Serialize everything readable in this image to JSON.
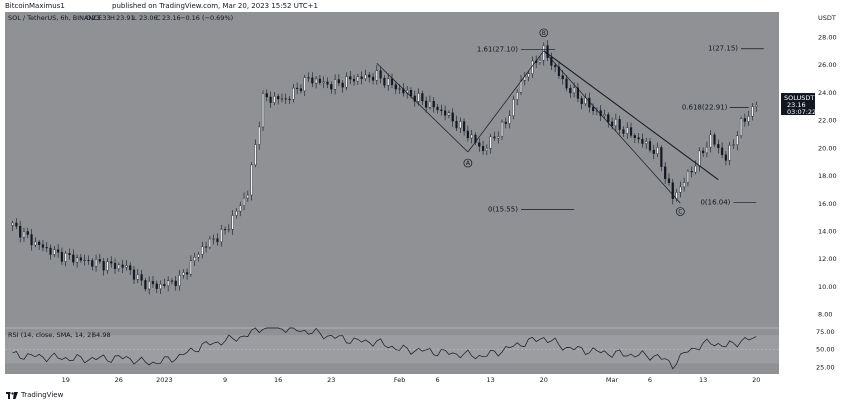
{
  "header": {
    "author": "BitcoinMaximus1",
    "published": "published on TradingView.com, Mar 20, 2023 15:52 UTC+1"
  },
  "legend": {
    "symbol": "SOL / TetherUS, 6h, BINANCE",
    "o_label": "O",
    "o": "23.33",
    "h_label": "H",
    "h": "23.91",
    "l_label": "L",
    "l": "23.06",
    "c_label": "C",
    "c": "23.16",
    "change": "−0.16 (−0.69%)"
  },
  "price_scale": {
    "currency": "USDT",
    "last_ticker": "SOLUSDT",
    "last_price": "23.16",
    "countdown": "03:07:22"
  },
  "annotations": {
    "wave_a": "A",
    "wave_b": "B",
    "wave_c": "C",
    "fib_161": "1.61(27.10)",
    "fib_0_lower": "0(15.55)",
    "fib_1": "1(27.15)",
    "fib_0618": "0.618(22.91)",
    "fib_0_right": "0(16.04)"
  },
  "rsi": {
    "label": "RSI (14, close, SMA, 14, 2)",
    "value": "64.98"
  },
  "footer": {
    "brand": "TradingView"
  },
  "colors": {
    "chart_bg": "#8f9194",
    "rsi_band": "#9b9da0",
    "candle": "#131722",
    "line": "#131722",
    "label_bg": "#131722",
    "label_fg": "#ffffff"
  },
  "chart_data": [
    {
      "type": "line",
      "name": "SOLUSDT 6h price (approximate closes, candlestick chart)",
      "x": [
        "Dec 12",
        "Dec 15",
        "Dec 18",
        "Dec 21",
        "Dec 24",
        "Dec 27",
        "Dec 29",
        "Dec 31",
        "Jan 3",
        "Jan 6",
        "Jan 9",
        "Jan 12",
        "Jan 14",
        "Jan 17",
        "Jan 20",
        "Jan 23",
        "Jan 26",
        "Jan 29",
        "Feb 1",
        "Feb 4",
        "Feb 7",
        "Feb 10",
        "Feb 12",
        "Feb 15",
        "Feb 17",
        "Feb 20",
        "Feb 23",
        "Feb 26",
        "Mar 1",
        "Mar 4",
        "Mar 7",
        "Mar 9",
        "Mar 11",
        "Mar 14",
        "Mar 16",
        "Mar 18",
        "Mar 20"
      ],
      "y": [
        14.4,
        13.1,
        12.3,
        11.9,
        11.6,
        11.4,
        10.3,
        10.0,
        10.5,
        12.8,
        14.0,
        16.8,
        23.6,
        23.5,
        25.0,
        24.5,
        25.0,
        25.2,
        24.2,
        23.4,
        22.5,
        21.0,
        19.8,
        21.8,
        24.8,
        27.0,
        24.4,
        23.0,
        21.8,
        20.8,
        19.6,
        16.4,
        18.0,
        20.7,
        19.2,
        21.7,
        23.16
      ],
      "ylim": [
        7.0,
        29.8
      ],
      "yticks": [
        "8.00",
        "10.00",
        "12.00",
        "14.00",
        "16.00",
        "18.00",
        "20.00",
        "22.00",
        "24.00",
        "26.00",
        "28.00"
      ],
      "xticks": [
        "19",
        "26",
        "2023",
        "9",
        "16",
        "23",
        "Feb",
        "6",
        "13",
        "20",
        "Mar",
        "6",
        "13",
        "20"
      ],
      "ylabel": "USDT",
      "grid": false
    },
    {
      "type": "line",
      "name": "RSI (14, close, SMA, 14, 2)",
      "x": [
        "Dec 12",
        "Dec 15",
        "Dec 18",
        "Dec 21",
        "Dec 24",
        "Dec 27",
        "Dec 29",
        "Dec 31",
        "Jan 3",
        "Jan 6",
        "Jan 9",
        "Jan 12",
        "Jan 14",
        "Jan 17",
        "Jan 20",
        "Jan 23",
        "Jan 26",
        "Jan 29",
        "Feb 1",
        "Feb 4",
        "Feb 7",
        "Feb 10",
        "Feb 12",
        "Feb 15",
        "Feb 17",
        "Feb 20",
        "Feb 23",
        "Feb 26",
        "Mar 1",
        "Mar 4",
        "Mar 7",
        "Mar 9",
        "Mar 11",
        "Mar 14",
        "Mar 16",
        "Mar 18",
        "Mar 20"
      ],
      "y": [
        42,
        40,
        38,
        36,
        37,
        38,
        32,
        31,
        40,
        55,
        62,
        70,
        82,
        80,
        75,
        68,
        62,
        60,
        50,
        48,
        45,
        42,
        40,
        50,
        58,
        66,
        52,
        48,
        44,
        42,
        40,
        28,
        48,
        60,
        54,
        62,
        64.98
      ],
      "ylim": [
        15,
        80
      ],
      "yticks": [
        "25.00",
        "50.00",
        "75.00"
      ],
      "band": [
        30,
        70
      ],
      "grid": false
    }
  ]
}
